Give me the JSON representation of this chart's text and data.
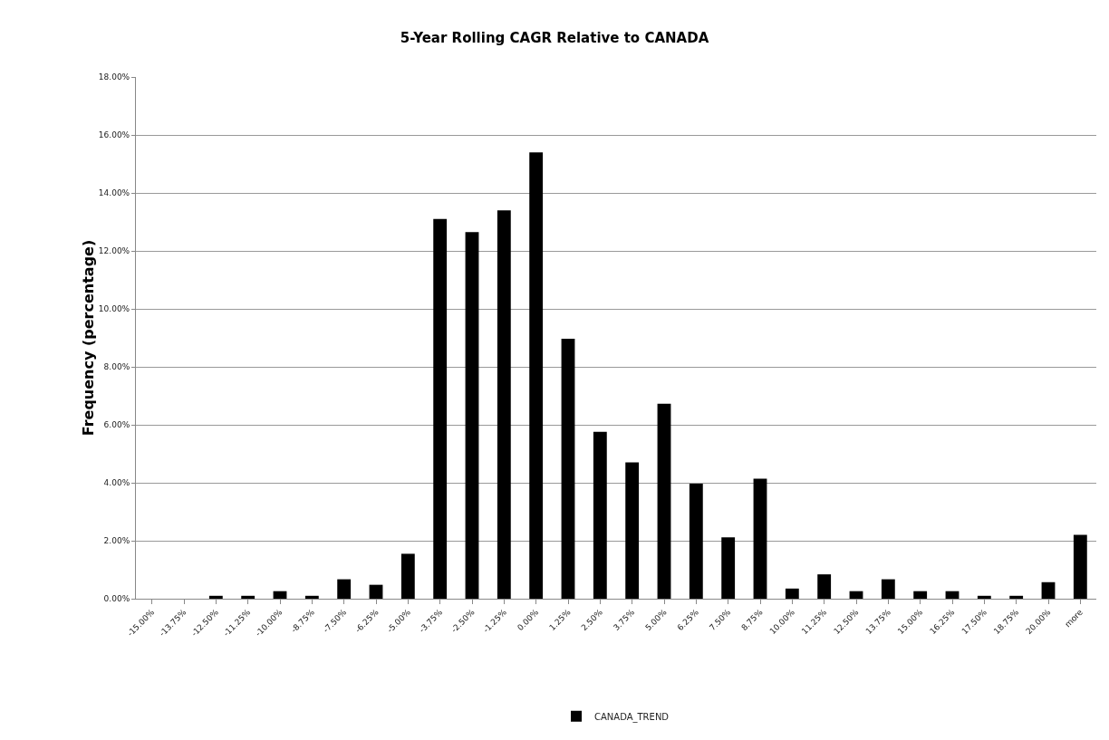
{
  "chart_data": {
    "type": "bar",
    "title": "5-Year Rolling CAGR Relative to CANADA",
    "ylabel": "Frequency (percentage)",
    "categories": [
      "-15.00%",
      "-13.75%",
      "-12.50%",
      "-11.25%",
      "-10.00%",
      "-8.75%",
      "-7.50%",
      "-6.25%",
      "-5.00%",
      "-3.75%",
      "-2.50%",
      "-1.25%",
      "0.00%",
      "1.25%",
      "2.50%",
      "3.75%",
      "5.00%",
      "6.25%",
      "7.50%",
      "8.75%",
      "10.00%",
      "11.25%",
      "12.50%",
      "13.75%",
      "15.00%",
      "16.25%",
      "17.50%",
      "18.75%",
      "20.00%",
      "more"
    ],
    "series": [
      {
        "name": "CANADA_TREND",
        "color": "#000000",
        "values": [
          0,
          0,
          0.1,
          0.1,
          0.26,
          0.1,
          0.67,
          0.48,
          1.55,
          13.1,
          12.65,
          13.4,
          15.4,
          8.97,
          5.76,
          4.7,
          6.73,
          3.97,
          2.12,
          4.14,
          0.35,
          0.84,
          0.26,
          0.67,
          0.26,
          0.26,
          0.1,
          0.1,
          0.57,
          2.2
        ]
      }
    ],
    "ylim": [
      0,
      18
    ],
    "yticks": [
      {
        "value": 0,
        "label": "0.00%"
      },
      {
        "value": 2,
        "label": "2.00%"
      },
      {
        "value": 4,
        "label": "4.00%"
      },
      {
        "value": 6,
        "label": "6.00%"
      },
      {
        "value": 8,
        "label": "8.00%"
      },
      {
        "value": 10,
        "label": "10.00%"
      },
      {
        "value": 12,
        "label": "12.00%"
      },
      {
        "value": 14,
        "label": "14.00%"
      },
      {
        "value": 16,
        "label": "16.00%"
      },
      {
        "value": 18,
        "label": "18.00%"
      }
    ],
    "grid": "y",
    "legend": "bottom"
  }
}
